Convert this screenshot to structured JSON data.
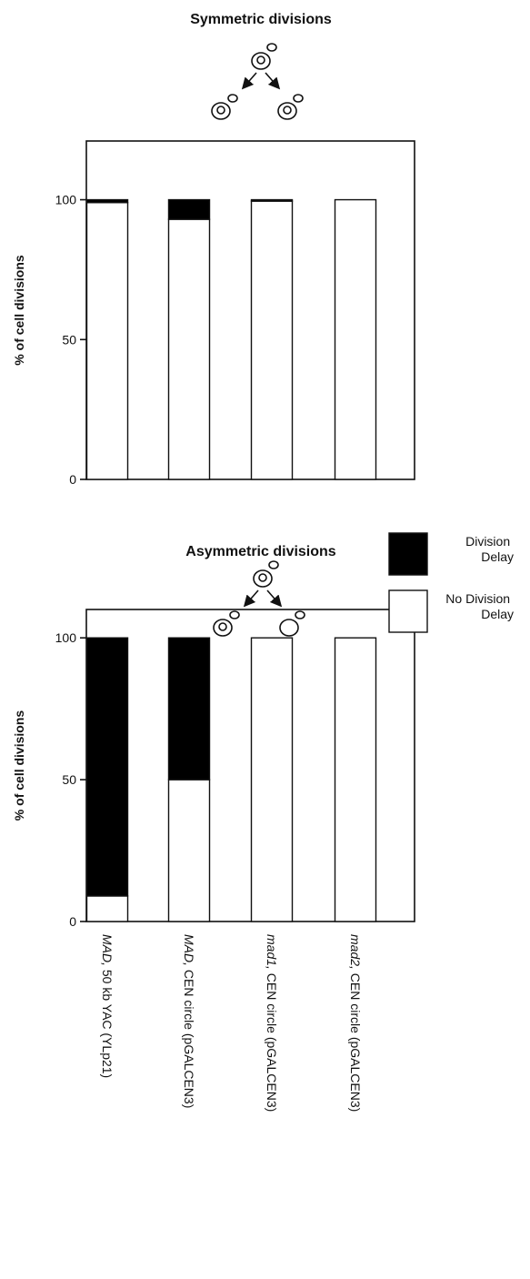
{
  "chart_data": [
    {
      "type": "stacked_bar",
      "title": "Symmetric divisions",
      "ylabel": "% of cell divisions",
      "categories": [
        null,
        null,
        null,
        null
      ],
      "series": [
        {
          "color": "#000000",
          "values": [
            1,
            7,
            0.5,
            0
          ]
        },
        {
          "color": "#ffffff",
          "values": [
            99,
            93,
            99.5,
            100
          ]
        }
      ],
      "ylim": [
        0,
        121
      ],
      "yticks": [
        0,
        50,
        100
      ]
    },
    {
      "type": "stacked_bar",
      "title": "Asymmetric divisions",
      "ylabel": "% of cell divisions",
      "categories": [
        "MAD, 50 kb YAC (YLp21)",
        "MAD, CEN circle (pGALCEN3)",
        "mad1, CEN circle (pGALCEN3)",
        "mad2, CEN circle (pGALCEN3)"
      ],
      "series": [
        {
          "name": "Division Delay",
          "color": "#000000",
          "values": [
            91,
            50,
            0,
            0
          ]
        },
        {
          "name": "No Division Delay",
          "color": "#ffffff",
          "values": [
            9,
            50,
            100,
            100
          ]
        }
      ],
      "ylim": [
        0,
        110
      ],
      "yticks": [
        0,
        50,
        100
      ],
      "legend": "right"
    }
  ]
}
